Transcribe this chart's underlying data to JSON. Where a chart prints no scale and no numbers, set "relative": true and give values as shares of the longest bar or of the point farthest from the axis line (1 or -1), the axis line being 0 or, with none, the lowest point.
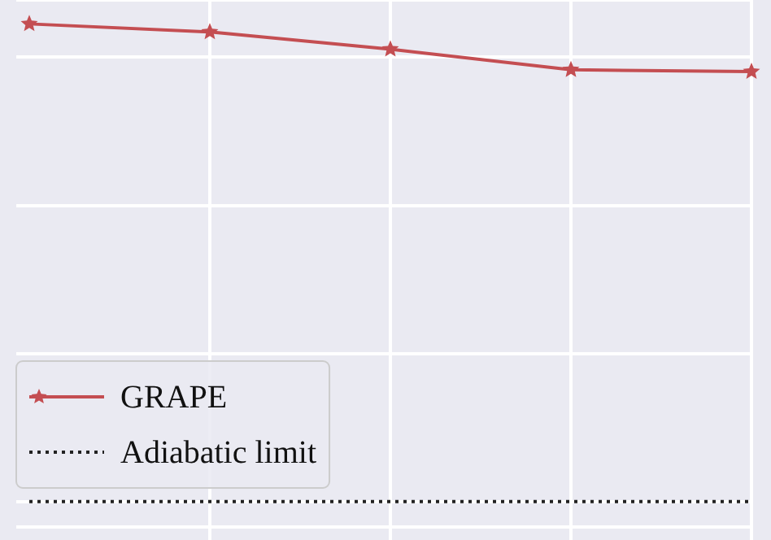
{
  "chart_data": {
    "type": "line",
    "categories": [
      null,
      null,
      null,
      null,
      null
    ],
    "relative": true,
    "grid": true,
    "legend": "bottom left",
    "series": [
      {
        "name": "GRAPE",
        "color": "#c44e52",
        "values": [
          1,
          0.983,
          0.947,
          0.904,
          0.9
        ],
        "marker": "star",
        "line_style": "solid"
      },
      {
        "name": "Adiabatic limit",
        "color": "#222222",
        "values": [
          0,
          0,
          0,
          0,
          0
        ],
        "marker": "none",
        "line_style": "dotted"
      }
    ]
  }
}
